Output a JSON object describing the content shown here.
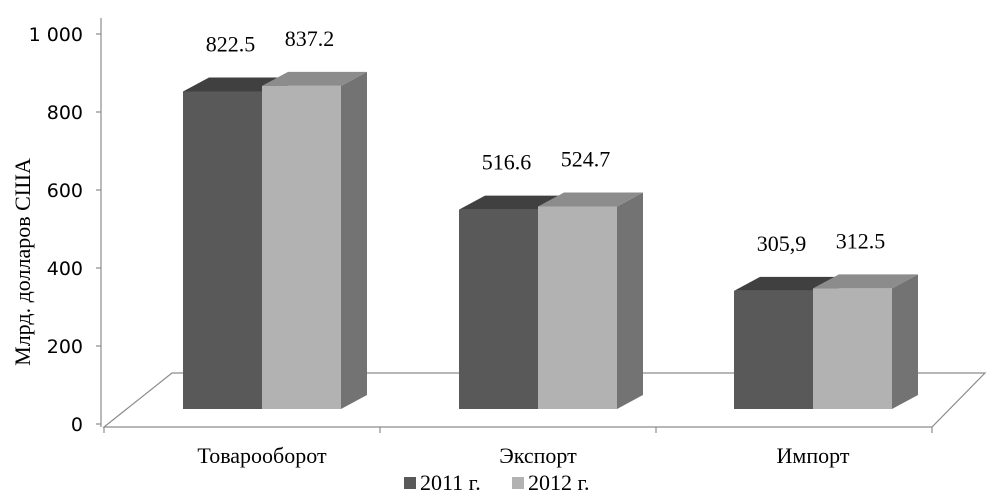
{
  "chart_data": {
    "type": "bar",
    "style": "3d-clustered-column",
    "title": "",
    "xlabel": "",
    "ylabel": "Млрд. долларов США",
    "ylim": [
      0,
      1000
    ],
    "yticks": [
      {
        "value": 0,
        "label": "0"
      },
      {
        "value": 200,
        "label": "200"
      },
      {
        "value": 400,
        "label": "400"
      },
      {
        "value": 600,
        "label": "600"
      },
      {
        "value": 800,
        "label": "800"
      },
      {
        "value": 1000,
        "label": "1 000"
      }
    ],
    "categories": [
      "Товарооборот",
      "Экспорт",
      "Импорт"
    ],
    "series": [
      {
        "name": "2011 г.",
        "values": [
          822.5,
          516.6,
          305.9
        ],
        "data_labels": [
          "822.5",
          "516.6",
          "305,9"
        ],
        "color": "#595959",
        "top_color": "#404040",
        "side_color": "#4a4a4a"
      },
      {
        "name": "2012 г.",
        "values": [
          837.2,
          524.7,
          312.5
        ],
        "data_labels": [
          "837.2",
          "524.7",
          "312.5"
        ],
        "color": "#b2b2b2",
        "top_color": "#8c8c8c",
        "side_color": "#737373"
      }
    ],
    "grid": false,
    "legend_position": "bottom"
  }
}
